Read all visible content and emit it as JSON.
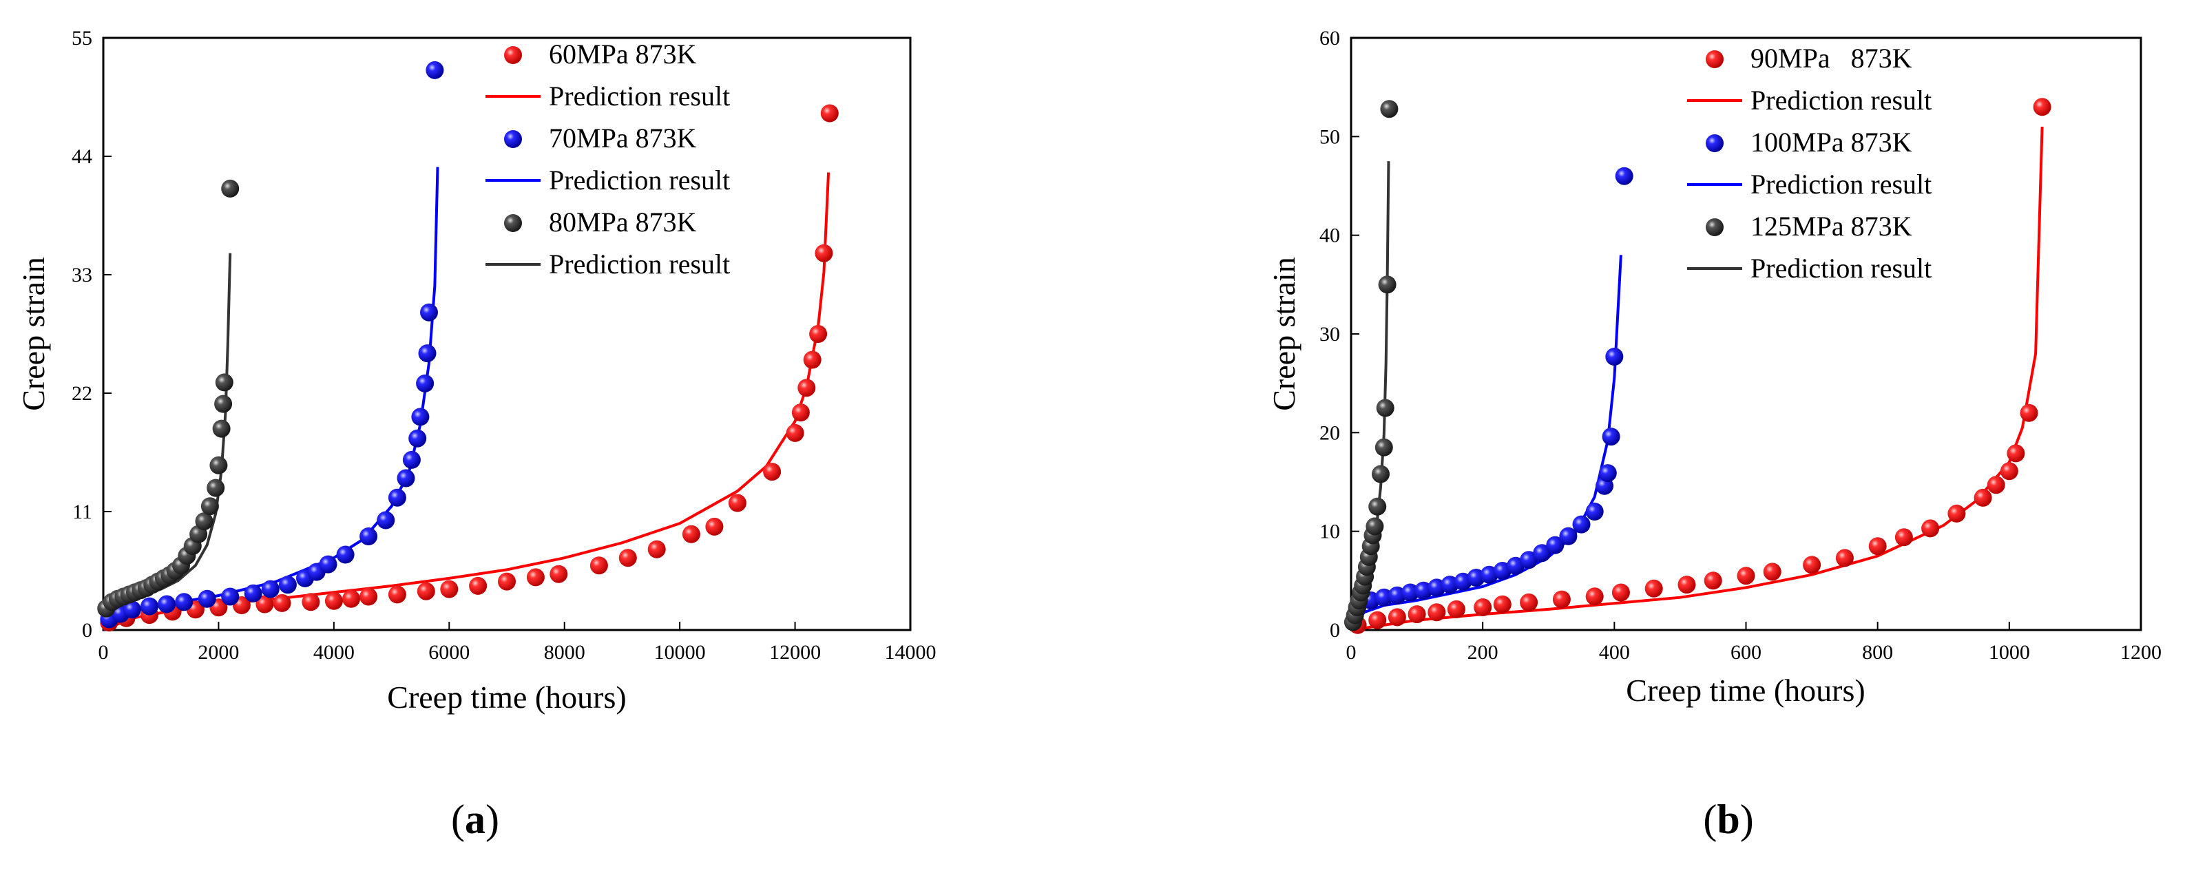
{
  "chart_data": [
    {
      "type": "scatter",
      "panel": "(a)",
      "caption": {
        "open": "(",
        "letter": "a",
        "close": ")"
      },
      "xlabel": "Creep time (hours)",
      "ylabel": "Creep strain",
      "xlim": [
        0,
        14000
      ],
      "ylim": [
        0,
        55
      ],
      "xticks": [
        0,
        2000,
        4000,
        6000,
        8000,
        10000,
        12000,
        14000
      ],
      "yticks": [
        0,
        11,
        22,
        33,
        44,
        55
      ],
      "legend_position": "top-right",
      "series": [
        {
          "name": "60MPa 873K",
          "line_name": "Prediction result",
          "color": "#ff0000",
          "points": [
            [
              100,
              0.7
            ],
            [
              400,
              1.1
            ],
            [
              800,
              1.4
            ],
            [
              1200,
              1.7
            ],
            [
              1600,
              1.9
            ],
            [
              2000,
              2.1
            ],
            [
              2400,
              2.3
            ],
            [
              2800,
              2.4
            ],
            [
              3100,
              2.5
            ],
            [
              3600,
              2.6
            ],
            [
              4000,
              2.7
            ],
            [
              4300,
              2.9
            ],
            [
              4600,
              3.1
            ],
            [
              5100,
              3.3
            ],
            [
              5600,
              3.6
            ],
            [
              6000,
              3.8
            ],
            [
              6500,
              4.1
            ],
            [
              7000,
              4.5
            ],
            [
              7500,
              4.9
            ],
            [
              7900,
              5.2
            ],
            [
              8600,
              6.0
            ],
            [
              9100,
              6.7
            ],
            [
              9600,
              7.5
            ],
            [
              10200,
              8.9
            ],
            [
              10600,
              9.6
            ],
            [
              11000,
              11.8
            ],
            [
              11600,
              14.7
            ],
            [
              12000,
              18.3
            ],
            [
              12100,
              20.2
            ],
            [
              12200,
              22.5
            ],
            [
              12300,
              25.1
            ],
            [
              12400,
              27.5
            ],
            [
              12500,
              35.0
            ],
            [
              12600,
              48.0
            ]
          ],
          "curve": [
            [
              0,
              0.0
            ],
            [
              500,
              1.1
            ],
            [
              1000,
              1.6
            ],
            [
              2000,
              2.4
            ],
            [
              3000,
              2.9
            ],
            [
              4000,
              3.5
            ],
            [
              5000,
              4.1
            ],
            [
              6000,
              4.8
            ],
            [
              7000,
              5.6
            ],
            [
              8000,
              6.7
            ],
            [
              9000,
              8.1
            ],
            [
              10000,
              9.9
            ],
            [
              11000,
              12.9
            ],
            [
              11500,
              15.2
            ],
            [
              12000,
              19.4
            ],
            [
              12200,
              22.6
            ],
            [
              12400,
              28.2
            ],
            [
              12500,
              33.2
            ],
            [
              12580,
              42.5
            ]
          ]
        },
        {
          "name": "70MPa 873K",
          "line_name": "Prediction result",
          "color": "#0000ff",
          "points": [
            [
              100,
              1.0
            ],
            [
              300,
              1.5
            ],
            [
              500,
              1.9
            ],
            [
              800,
              2.2
            ],
            [
              1100,
              2.4
            ],
            [
              1400,
              2.6
            ],
            [
              1800,
              2.9
            ],
            [
              2200,
              3.1
            ],
            [
              2600,
              3.4
            ],
            [
              2900,
              3.8
            ],
            [
              3200,
              4.2
            ],
            [
              3500,
              4.8
            ],
            [
              3700,
              5.4
            ],
            [
              3900,
              6.1
            ],
            [
              4200,
              7.0
            ],
            [
              4600,
              8.7
            ],
            [
              4900,
              10.2
            ],
            [
              5100,
              12.3
            ],
            [
              5250,
              14.1
            ],
            [
              5350,
              15.8
            ],
            [
              5450,
              17.8
            ],
            [
              5500,
              19.8
            ],
            [
              5580,
              22.9
            ],
            [
              5620,
              25.7
            ],
            [
              5650,
              29.5
            ],
            [
              5750,
              52.0
            ]
          ],
          "curve": [
            [
              0,
              0.0
            ],
            [
              500,
              1.7
            ],
            [
              1000,
              2.3
            ],
            [
              2000,
              3.2
            ],
            [
              3000,
              4.5
            ],
            [
              4000,
              6.7
            ],
            [
              4500,
              8.4
            ],
            [
              5000,
              11.5
            ],
            [
              5300,
              14.6
            ],
            [
              5500,
              19.1
            ],
            [
              5650,
              24.8
            ],
            [
              5750,
              32.0
            ],
            [
              5800,
              43.0
            ]
          ]
        },
        {
          "name": "80MPa 873K",
          "line_name": "Prediction result",
          "color": "#333333",
          "points": [
            [
              50,
              2.0
            ],
            [
              150,
              2.6
            ],
            [
              250,
              2.9
            ],
            [
              350,
              3.1
            ],
            [
              450,
              3.3
            ],
            [
              550,
              3.5
            ],
            [
              650,
              3.7
            ],
            [
              750,
              3.9
            ],
            [
              850,
              4.2
            ],
            [
              950,
              4.5
            ],
            [
              1050,
              4.8
            ],
            [
              1150,
              5.1
            ],
            [
              1250,
              5.5
            ],
            [
              1350,
              6.0
            ],
            [
              1450,
              6.9
            ],
            [
              1550,
              7.8
            ],
            [
              1650,
              8.9
            ],
            [
              1750,
              10.1
            ],
            [
              1850,
              11.5
            ],
            [
              1950,
              13.2
            ],
            [
              2000,
              15.3
            ],
            [
              2050,
              18.7
            ],
            [
              2080,
              21.0
            ],
            [
              2100,
              23.0
            ],
            [
              2200,
              41.0
            ]
          ],
          "curve": [
            [
              0,
              0.0
            ],
            [
              200,
              2.2
            ],
            [
              500,
              2.9
            ],
            [
              1000,
              3.8
            ],
            [
              1300,
              4.6
            ],
            [
              1600,
              6.0
            ],
            [
              1800,
              7.9
            ],
            [
              1950,
              10.8
            ],
            [
              2050,
              14.8
            ],
            [
              2120,
              20.2
            ],
            [
              2160,
              26.5
            ],
            [
              2200,
              35.0
            ]
          ]
        }
      ]
    },
    {
      "type": "scatter",
      "panel": "(b)",
      "caption": {
        "open": "(",
        "letter": "b",
        "close": ")"
      },
      "xlabel": "Creep time (hours)",
      "ylabel": "Creep strain",
      "xlim": [
        0,
        1200
      ],
      "ylim": [
        0,
        60
      ],
      "xticks": [
        0,
        200,
        400,
        600,
        800,
        1000,
        1200
      ],
      "yticks": [
        0,
        10,
        20,
        30,
        40,
        50,
        60
      ],
      "legend_position": "top-right",
      "series": [
        {
          "name": "90MPa   873K",
          "line_name": "Prediction result",
          "color": "#ff0000",
          "points": [
            [
              10,
              0.5
            ],
            [
              40,
              1.0
            ],
            [
              70,
              1.3
            ],
            [
              100,
              1.6
            ],
            [
              130,
              1.8
            ],
            [
              160,
              2.1
            ],
            [
              200,
              2.3
            ],
            [
              230,
              2.6
            ],
            [
              270,
              2.8
            ],
            [
              320,
              3.1
            ],
            [
              370,
              3.4
            ],
            [
              410,
              3.8
            ],
            [
              460,
              4.2
            ],
            [
              510,
              4.6
            ],
            [
              550,
              5.0
            ],
            [
              600,
              5.5
            ],
            [
              640,
              5.9
            ],
            [
              700,
              6.6
            ],
            [
              750,
              7.3
            ],
            [
              800,
              8.5
            ],
            [
              840,
              9.4
            ],
            [
              880,
              10.3
            ],
            [
              920,
              11.8
            ],
            [
              960,
              13.4
            ],
            [
              980,
              14.7
            ],
            [
              1000,
              16.1
            ],
            [
              1010,
              17.9
            ],
            [
              1030,
              22.0
            ],
            [
              1050,
              53.0
            ]
          ],
          "curve": [
            [
              0,
              0.0
            ],
            [
              100,
              1.0
            ],
            [
              200,
              1.6
            ],
            [
              300,
              2.1
            ],
            [
              400,
              2.7
            ],
            [
              500,
              3.3
            ],
            [
              600,
              4.3
            ],
            [
              700,
              5.6
            ],
            [
              800,
              7.5
            ],
            [
              900,
              10.6
            ],
            [
              950,
              13.1
            ],
            [
              1000,
              17.0
            ],
            [
              1020,
              20.5
            ],
            [
              1040,
              28.0
            ],
            [
              1050,
              51.0
            ]
          ]
        },
        {
          "name": "100MPa 873K",
          "line_name": "Prediction result",
          "color": "#0000ff",
          "points": [
            [
              10,
              2.4
            ],
            [
              30,
              3.0
            ],
            [
              50,
              3.3
            ],
            [
              70,
              3.5
            ],
            [
              90,
              3.8
            ],
            [
              110,
              4.0
            ],
            [
              130,
              4.3
            ],
            [
              150,
              4.6
            ],
            [
              170,
              4.9
            ],
            [
              190,
              5.3
            ],
            [
              210,
              5.6
            ],
            [
              230,
              6.0
            ],
            [
              250,
              6.5
            ],
            [
              270,
              7.1
            ],
            [
              290,
              7.8
            ],
            [
              310,
              8.6
            ],
            [
              330,
              9.5
            ],
            [
              350,
              10.7
            ],
            [
              370,
              12.0
            ],
            [
              385,
              14.6
            ],
            [
              390,
              15.9
            ],
            [
              395,
              19.6
            ],
            [
              400,
              27.7
            ],
            [
              415,
              46.0
            ]
          ],
          "curve": [
            [
              0,
              0.0
            ],
            [
              20,
              1.8
            ],
            [
              50,
              2.5
            ],
            [
              100,
              3.0
            ],
            [
              150,
              3.7
            ],
            [
              200,
              4.4
            ],
            [
              250,
              5.6
            ],
            [
              300,
              7.4
            ],
            [
              340,
              9.7
            ],
            [
              370,
              13.5
            ],
            [
              390,
              19.2
            ],
            [
              400,
              25.5
            ],
            [
              410,
              38.0
            ]
          ]
        },
        {
          "name": "125MPa 873K",
          "line_name": "Prediction result",
          "color": "#333333",
          "points": [
            [
              3,
              0.8
            ],
            [
              6,
              1.5
            ],
            [
              9,
              2.3
            ],
            [
              12,
              3.0
            ],
            [
              15,
              3.8
            ],
            [
              18,
              4.5
            ],
            [
              21,
              5.4
            ],
            [
              24,
              6.4
            ],
            [
              27,
              7.4
            ],
            [
              30,
              8.5
            ],
            [
              33,
              9.6
            ],
            [
              36,
              10.5
            ],
            [
              40,
              12.5
            ],
            [
              45,
              15.8
            ],
            [
              50,
              18.5
            ],
            [
              52,
              22.5
            ],
            [
              55,
              35.0
            ],
            [
              58,
              52.8
            ]
          ],
          "curve": [
            [
              0,
              0.0
            ],
            [
              10,
              3.2
            ],
            [
              20,
              5.2
            ],
            [
              30,
              7.6
            ],
            [
              40,
              11.3
            ],
            [
              45,
              14.5
            ],
            [
              50,
              19.8
            ],
            [
              53,
              27.0
            ],
            [
              55,
              35.5
            ],
            [
              57,
              47.5
            ]
          ]
        }
      ]
    }
  ]
}
